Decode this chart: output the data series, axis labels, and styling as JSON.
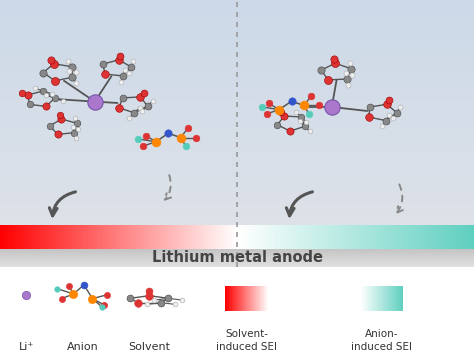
{
  "fig_width": 4.74,
  "fig_height": 3.59,
  "dpi": 100,
  "bg_top": "#ccd9e8",
  "bg_bottom_left": "#dae2ec",
  "bg_bottom_right": "#dae2ec",
  "divider_color": "#999999",
  "anode_bar_color": "#c8c8c8",
  "anode_label": "Lithium metal anode",
  "anode_label_fontsize": 10.5,
  "anode_label_color": "#444444",
  "sei_red_start": "#f47070",
  "sei_red_end": "#ffffff",
  "sei_teal_start": "#ffffff",
  "sei_teal_end": "#5ecfbf",
  "li_color": "#aa77cc",
  "o_color": "#dd3333",
  "c_color": "#888888",
  "h_color": "#eeeeee",
  "n_color": "#3355cc",
  "f_color": "#55ccbb",
  "p_color": "#ff8800",
  "bond_color": "#555555",
  "legend_li_label": "Li⁺",
  "legend_anion_label": "Anion",
  "legend_solvent_label": "Solvent",
  "legend_sei_red_label": "Solvent-\ninduced SEI",
  "legend_sei_teal_label": "Anion-\ninduced SEI",
  "legend_fontsize": 8.0,
  "arrow_color": "#555555"
}
